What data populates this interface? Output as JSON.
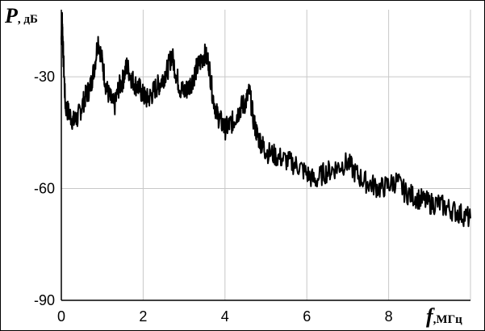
{
  "chart_data": {
    "type": "line",
    "title": "",
    "ylabel": {
      "var": "P",
      "unit": ", дБ"
    },
    "xlabel": {
      "var": "f",
      "unit": ",МГц"
    },
    "xlim": [
      0,
      10
    ],
    "ylim": [
      -90,
      -12
    ],
    "x_ticks": [
      0,
      2,
      4,
      6,
      8
    ],
    "x_tick_labels": [
      "0",
      "2",
      "4",
      "6",
      "8"
    ],
    "y_ticks": [
      -30,
      -60,
      -90
    ],
    "y_tick_labels": [
      "-30",
      "-60",
      "-90"
    ],
    "grid": true,
    "colors": {
      "line": "#000000",
      "grid": "#c8c8c8",
      "axis": "#000000"
    },
    "series": [
      {
        "x": [
          0.0,
          0.02,
          0.05,
          0.1,
          0.2,
          0.3,
          0.4,
          0.5,
          0.6,
          0.7,
          0.8,
          0.9,
          1.0,
          1.1,
          1.2,
          1.3,
          1.4,
          1.5,
          1.6,
          1.7,
          1.8,
          1.9,
          2.0,
          2.1,
          2.2,
          2.3,
          2.4,
          2.5,
          2.6,
          2.7,
          2.8,
          2.9,
          3.0,
          3.1,
          3.2,
          3.3,
          3.4,
          3.5,
          3.6,
          3.7,
          3.8,
          3.9,
          4.0,
          4.1,
          4.2,
          4.3,
          4.4,
          4.5,
          4.6,
          4.7,
          4.8,
          4.9,
          5.0,
          5.2,
          5.4,
          5.6,
          5.8,
          6.0,
          6.2,
          6.4,
          6.6,
          6.8,
          7.0,
          7.2,
          7.4,
          7.6,
          7.8,
          8.0,
          8.2,
          8.4,
          8.6,
          8.8,
          9.0,
          9.2,
          9.4,
          9.6,
          9.8,
          10.0
        ],
        "y": [
          -20,
          -14,
          -25,
          -38,
          -40,
          -42,
          -41,
          -38,
          -35,
          -33,
          -28,
          -20,
          -26,
          -33,
          -36,
          -38,
          -33,
          -31,
          -27,
          -30,
          -32,
          -33,
          -35,
          -36,
          -35,
          -33,
          -32,
          -30,
          -28,
          -24,
          -29,
          -33,
          -34,
          -33,
          -31,
          -28,
          -26,
          -24,
          -26,
          -35,
          -40,
          -42,
          -44,
          -43,
          -42,
          -40,
          -38,
          -37,
          -34,
          -42,
          -46,
          -48,
          -50,
          -51,
          -52,
          -53,
          -54,
          -56,
          -58,
          -56,
          -55,
          -54,
          -53,
          -56,
          -58,
          -59,
          -60,
          -59,
          -58,
          -61,
          -62,
          -63,
          -64,
          -64,
          -65,
          -66,
          -67,
          -68
        ]
      }
    ]
  }
}
